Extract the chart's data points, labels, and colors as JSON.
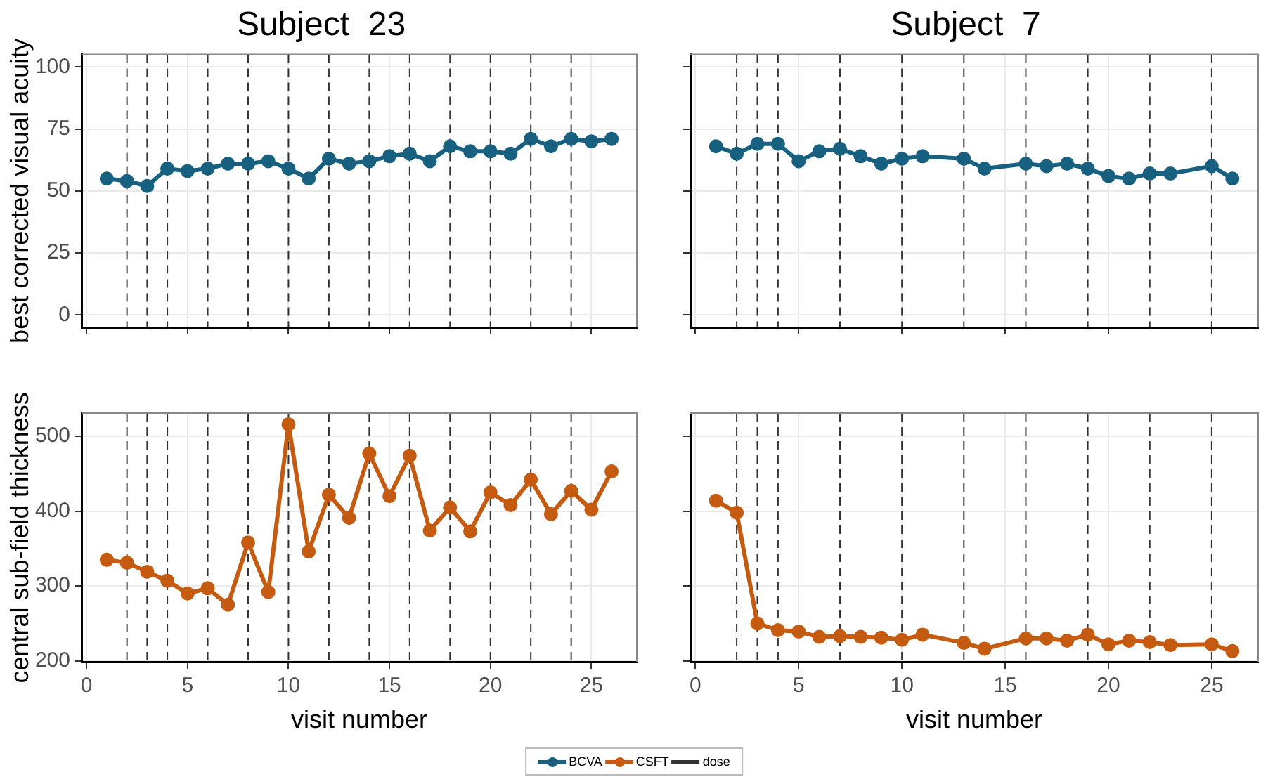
{
  "chart_data": [
    {
      "type": "line",
      "title": "Subject  23",
      "ylabel": "best corrected visual acuity",
      "x": [
        1,
        2,
        3,
        4,
        5,
        6,
        7,
        8,
        9,
        10,
        11,
        12,
        13,
        14,
        15,
        16,
        17,
        18,
        19,
        20,
        21,
        22,
        23,
        24,
        25,
        26
      ],
      "series": [
        {
          "name": "BCVA",
          "color": "#17607f",
          "values": [
            55,
            54,
            52,
            59,
            58,
            59,
            61,
            61,
            62,
            59,
            55,
            63,
            61,
            62,
            64,
            65,
            62,
            68,
            66,
            66,
            65,
            71,
            68,
            71,
            70,
            71
          ]
        }
      ],
      "xlim": [
        -0.25,
        27.25
      ],
      "xticks": [
        0,
        5,
        10,
        15,
        20,
        25
      ],
      "ylim": [
        -5,
        105
      ],
      "yticks": [
        0,
        25,
        50,
        75,
        100
      ],
      "ref_lines": [
        {
          "axis": "x",
          "value": 2
        },
        {
          "axis": "x",
          "value": 3
        },
        {
          "axis": "x",
          "value": 4
        },
        {
          "axis": "x",
          "value": 6
        },
        {
          "axis": "x",
          "value": 8
        },
        {
          "axis": "x",
          "value": 10
        },
        {
          "axis": "x",
          "value": 12
        },
        {
          "axis": "x",
          "value": 14
        },
        {
          "axis": "x",
          "value": 16
        },
        {
          "axis": "x",
          "value": 18
        },
        {
          "axis": "x",
          "value": 20
        },
        {
          "axis": "x",
          "value": 22
        },
        {
          "axis": "x",
          "value": 24
        }
      ],
      "grid": true,
      "marker": "circle",
      "line_style": "solid",
      "tick_labels": "y",
      "legend": "bottom"
    },
    {
      "type": "line",
      "title": "Subject  7",
      "x": [
        1,
        2,
        3,
        4,
        5,
        6,
        7,
        8,
        9,
        10,
        11,
        13,
        14,
        16,
        17,
        18,
        19,
        20,
        21,
        22,
        23,
        25,
        26
      ],
      "series": [
        {
          "color": "#17607f",
          "values": [
            68,
            65,
            69,
            69,
            62,
            66,
            67,
            64,
            61,
            63,
            64,
            63,
            59,
            61,
            60,
            61,
            59,
            56,
            55,
            57,
            57,
            60,
            55
          ]
        }
      ],
      "xlim": [
        -0.25,
        27.25
      ],
      "xticks": [
        0,
        5,
        10,
        15,
        20,
        25
      ],
      "ylim": [
        -5,
        105
      ],
      "yticks": [
        0,
        25,
        50,
        75,
        100
      ],
      "ref_lines": [
        {
          "axis": "x",
          "value": 2
        },
        {
          "axis": "x",
          "value": 3
        },
        {
          "axis": "x",
          "value": 4
        },
        {
          "axis": "x",
          "value": 7
        },
        {
          "axis": "x",
          "value": 10
        },
        {
          "axis": "x",
          "value": 13
        },
        {
          "axis": "x",
          "value": 16
        },
        {
          "axis": "x",
          "value": 19
        },
        {
          "axis": "x",
          "value": 22
        },
        {
          "axis": "x",
          "value": 25
        }
      ],
      "grid": true,
      "marker": "circle",
      "line_style": "solid",
      "tick_labels": false
    },
    {
      "type": "line",
      "ylabel": "central sub-field thickness",
      "xlabel": "visit number",
      "x": [
        1,
        2,
        3,
        4,
        5,
        6,
        7,
        8,
        9,
        10,
        11,
        12,
        13,
        14,
        15,
        16,
        17,
        18,
        19,
        20,
        21,
        22,
        23,
        24,
        25,
        26
      ],
      "series": [
        {
          "name": "CSFT",
          "color": "#c55a11",
          "values": [
            335,
            331,
            319,
            307,
            290,
            297,
            275,
            358,
            292,
            516,
            346,
            422,
            391,
            477,
            420,
            474,
            374,
            405,
            373,
            425,
            408,
            442,
            396,
            427,
            402,
            453
          ]
        }
      ],
      "xlim": [
        -0.25,
        27.25
      ],
      "xticks": [
        0,
        5,
        10,
        15,
        20,
        25
      ],
      "ylim": [
        198,
        531
      ],
      "yticks": [
        200,
        300,
        400,
        500
      ],
      "ref_lines": [
        {
          "axis": "x",
          "value": 2,
          "label": "dose"
        },
        {
          "axis": "x",
          "value": 3
        },
        {
          "axis": "x",
          "value": 4
        },
        {
          "axis": "x",
          "value": 6
        },
        {
          "axis": "x",
          "value": 8
        },
        {
          "axis": "x",
          "value": 10
        },
        {
          "axis": "x",
          "value": 12
        },
        {
          "axis": "x",
          "value": 14
        },
        {
          "axis": "x",
          "value": 16
        },
        {
          "axis": "x",
          "value": 18
        },
        {
          "axis": "x",
          "value": 20
        },
        {
          "axis": "x",
          "value": 22
        },
        {
          "axis": "x",
          "value": 24
        }
      ],
      "grid": true,
      "marker": "circle",
      "line_style": "solid",
      "legend": "bottom"
    },
    {
      "type": "line",
      "xlabel": "visit number",
      "x": [
        1,
        2,
        3,
        4,
        5,
        6,
        7,
        8,
        9,
        10,
        11,
        13,
        14,
        16,
        17,
        18,
        19,
        20,
        21,
        22,
        23,
        25,
        26
      ],
      "series": [
        {
          "color": "#c55a11",
          "values": [
            414,
            398,
            250,
            241,
            239,
            232,
            233,
            232,
            231,
            228,
            235,
            224,
            216,
            230,
            230,
            227,
            235,
            222,
            227,
            225,
            221,
            222,
            213
          ]
        }
      ],
      "xlim": [
        -0.25,
        27.25
      ],
      "xticks": [
        0,
        5,
        10,
        15,
        20,
        25
      ],
      "ylim": [
        198,
        531
      ],
      "yticks": [
        200,
        300,
        400,
        500
      ],
      "ref_lines": [
        {
          "axis": "x",
          "value": 2
        },
        {
          "axis": "x",
          "value": 3
        },
        {
          "axis": "x",
          "value": 4
        },
        {
          "axis": "x",
          "value": 7
        },
        {
          "axis": "x",
          "value": 10
        },
        {
          "axis": "x",
          "value": 13
        },
        {
          "axis": "x",
          "value": 16
        },
        {
          "axis": "x",
          "value": 19
        },
        {
          "axis": "x",
          "value": 22
        },
        {
          "axis": "x",
          "value": 25
        }
      ],
      "grid": true,
      "marker": "circle",
      "line_style": "solid",
      "tick_labels": "x"
    }
  ]
}
